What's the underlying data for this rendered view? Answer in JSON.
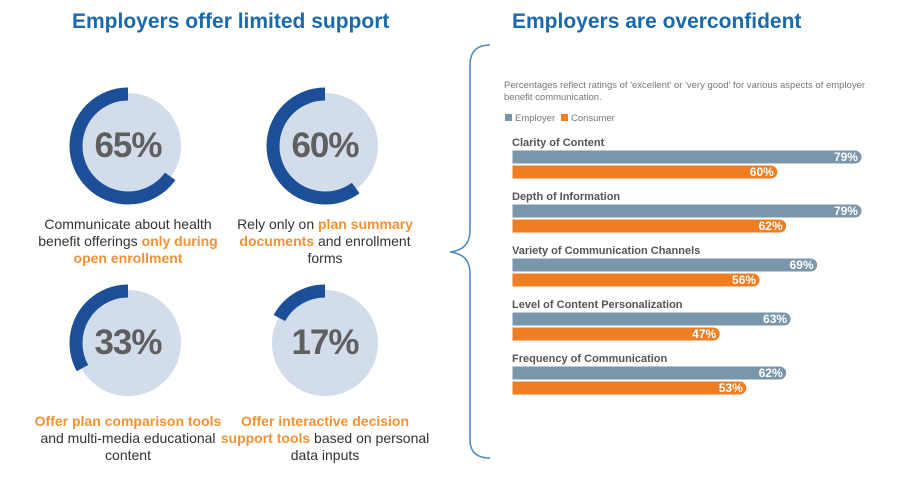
{
  "left": {
    "title": "Employers offer limited support",
    "stats": [
      {
        "value": 65,
        "label": "65%",
        "pre": "Communicate about health benefit offerings ",
        "hl": "only during open enrollment",
        "post": ""
      },
      {
        "value": 60,
        "label": "60%",
        "pre": "Rely only on ",
        "hl": "plan summary documents",
        "post": " and enrollment forms"
      },
      {
        "value": 33,
        "label": "33%",
        "pre": "",
        "hl": "Offer plan comparison tools",
        "post": " and multi-media educational content"
      },
      {
        "value": 17,
        "label": "17%",
        "pre": "",
        "hl": "Offer interactive decision support tools",
        "post": " based on personal data inputs"
      }
    ]
  },
  "right": {
    "title": "Employers are overconfident",
    "note": "Percentages reflect ratings of 'excellent' or 'very good' for various aspects of employer benefit communication."
  },
  "colors": {
    "ring": "#1c4f98",
    "ring_bg": "#d2dcea",
    "employer": "#7a96ab",
    "consumer": "#ef7d22"
  },
  "chart_data": {
    "type": "bar",
    "orientation": "horizontal",
    "categories": [
      "Clarity of Content",
      "Depth of Information",
      "Variety of Communication Channels",
      "Level of Content Personalization",
      "Frequency of Communication"
    ],
    "series": [
      {
        "name": "Employer",
        "values": [
          79,
          79,
          69,
          63,
          62
        ]
      },
      {
        "name": "Consumer",
        "values": [
          60,
          62,
          56,
          47,
          53
        ]
      }
    ],
    "legend": "top-left",
    "xlim": [
      0,
      100
    ],
    "unit": "%"
  }
}
